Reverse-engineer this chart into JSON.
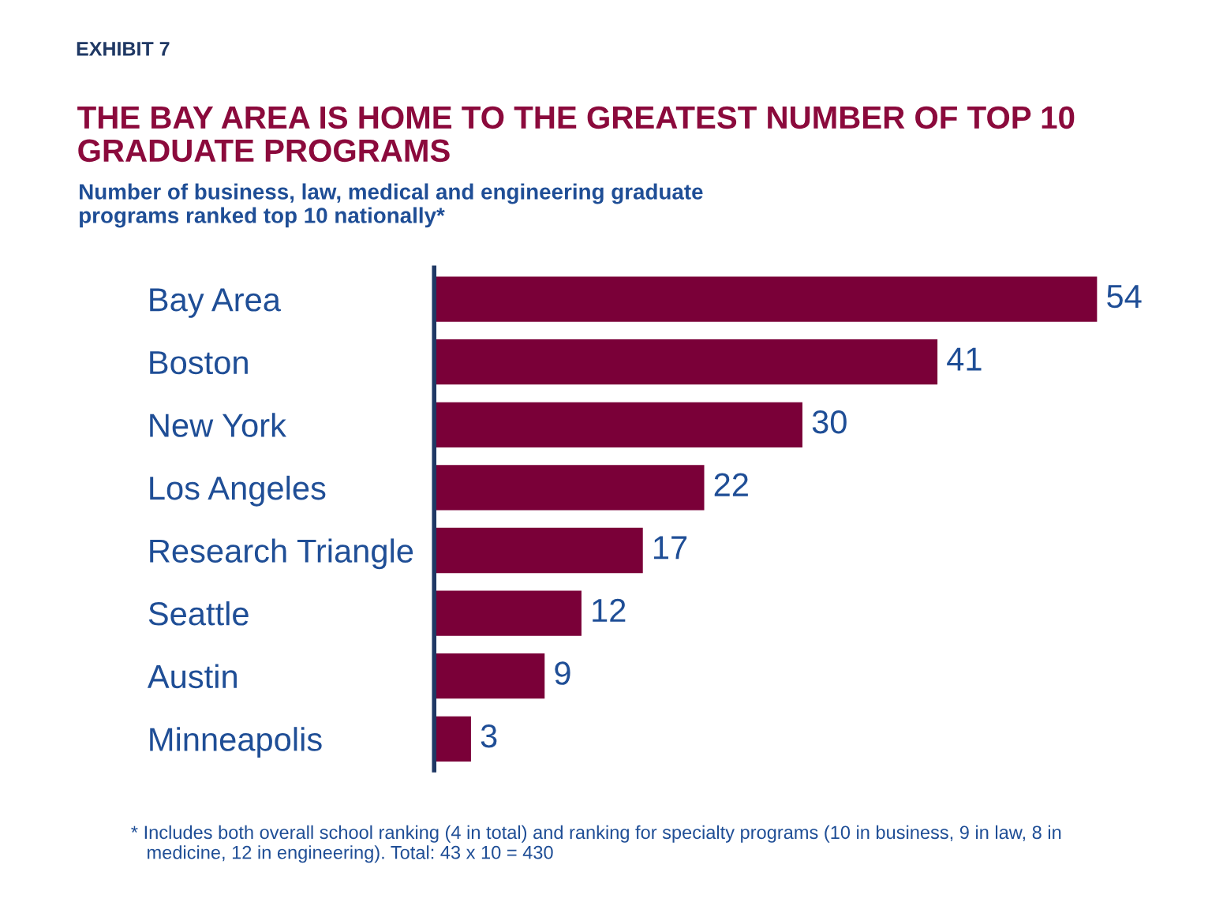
{
  "chart_data": {
    "type": "bar",
    "orientation": "horizontal",
    "title": "THE BAY AREA IS HOME TO THE GREATEST NUMBER OF TOP 10\nGRADUATE PROGRAMS",
    "subtitle": "Number of business, law, medical and engineering graduate\nprograms ranked top 10 nationally*",
    "categories": [
      "Bay Area",
      "Boston",
      "New York",
      "Los Angeles",
      "Research Triangle",
      "Seattle",
      "Austin",
      "Minneapolis"
    ],
    "values": [
      54,
      41,
      30,
      22,
      17,
      12,
      9,
      3
    ],
    "color": "#7a0038",
    "data_labels": true,
    "grid": false,
    "legend": false,
    "annotations": [
      "EXHIBIT 7",
      "* Includes both overall school ranking (4 in total) and ranking for specialty programs (10 in business, 9 in law, 8 in\n   medicine, 12 in engineering). Total: 43 x 10 = 430"
    ]
  }
}
